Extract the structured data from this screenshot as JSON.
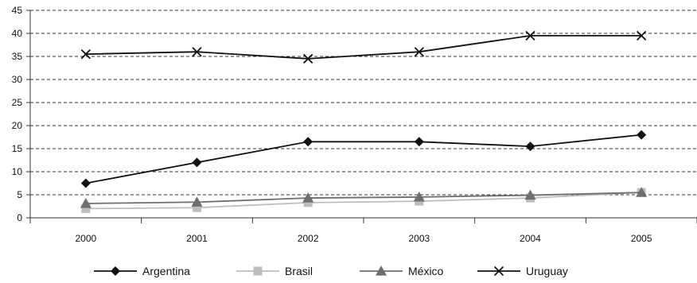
{
  "chart_data": {
    "type": "line",
    "x": [
      "2000",
      "2001",
      "2002",
      "2003",
      "2004",
      "2005"
    ],
    "ylim": [
      0,
      45
    ],
    "y_ticks": [
      0,
      5,
      10,
      15,
      20,
      25,
      30,
      35,
      40,
      45
    ],
    "grid": "horizontal dashed",
    "legend_position": "bottom",
    "series": [
      {
        "name": "Argentina",
        "values": [
          7.5,
          12.0,
          16.5,
          16.5,
          15.5,
          18.0
        ],
        "color": "#111111",
        "marker": "diamond"
      },
      {
        "name": "Brasil",
        "values": [
          2.0,
          2.2,
          3.3,
          3.6,
          4.3,
          5.5
        ],
        "color": "#bdbdbd",
        "marker": "square"
      },
      {
        "name": "México",
        "values": [
          3.1,
          3.4,
          4.3,
          4.5,
          4.9,
          5.5
        ],
        "color": "#6e6e6e",
        "marker": "triangle"
      },
      {
        "name": "Uruguay",
        "values": [
          35.5,
          36.0,
          34.5,
          36.0,
          39.5,
          39.5
        ],
        "color": "#111111",
        "marker": "x"
      }
    ]
  }
}
